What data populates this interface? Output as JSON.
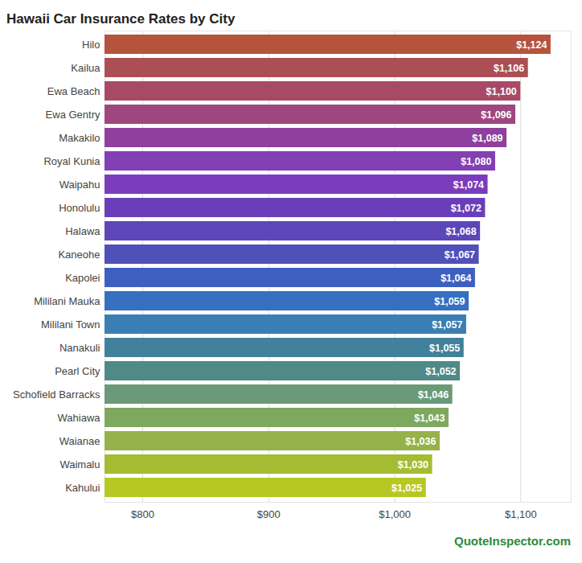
{
  "chart_data": {
    "type": "bar",
    "title": "Hawaii Car Insurance Rates by City",
    "caption": "QuoteInspector.com",
    "orientation": "horizontal",
    "categories": [
      "Hilo",
      "Kailua",
      "Ewa Beach",
      "Ewa Gentry",
      "Makakilo",
      "Royal Kunia",
      "Waipahu",
      "Honolulu",
      "Halawa",
      "Kaneohe",
      "Kapolei",
      "Mililani Mauka",
      "Mililani Town",
      "Nanakuli",
      "Pearl City",
      "Schofield Barracks",
      "Wahiawa",
      "Waianae",
      "Waimalu",
      "Kahului"
    ],
    "values": [
      1124,
      1106,
      1100,
      1096,
      1089,
      1080,
      1074,
      1072,
      1068,
      1067,
      1064,
      1059,
      1057,
      1055,
      1052,
      1046,
      1043,
      1036,
      1030,
      1025
    ],
    "value_labels": [
      "$1,124",
      "$1,106",
      "$1,100",
      "$1,096",
      "$1,089",
      "$1,080",
      "$1,074",
      "$1,072",
      "$1,068",
      "$1,067",
      "$1,064",
      "$1,059",
      "$1,057",
      "$1,055",
      "$1,052",
      "$1,046",
      "$1,043",
      "$1,036",
      "$1,030",
      "$1,025"
    ],
    "colors": [
      "#b5533c",
      "#ab4f55",
      "#a84a66",
      "#9f4680",
      "#8f3f9e",
      "#8340b4",
      "#7a3cba",
      "#6a3eba",
      "#5c46b8",
      "#4f50b8",
      "#3c5fc0",
      "#3770c0",
      "#3b7eb4",
      "#41819b",
      "#4f8a88",
      "#6a9a78",
      "#7ea85e",
      "#96b24a",
      "#a5bc32",
      "#b7c824"
    ],
    "data_labels": true,
    "grid": true,
    "xlim": [
      770,
      1140
    ],
    "xticks": [
      {
        "value": 800,
        "label": "$800"
      },
      {
        "value": 900,
        "label": "$900"
      },
      {
        "value": 1000,
        "label": "$1,000"
      },
      {
        "value": 1100,
        "label": "$1,100"
      }
    ]
  }
}
